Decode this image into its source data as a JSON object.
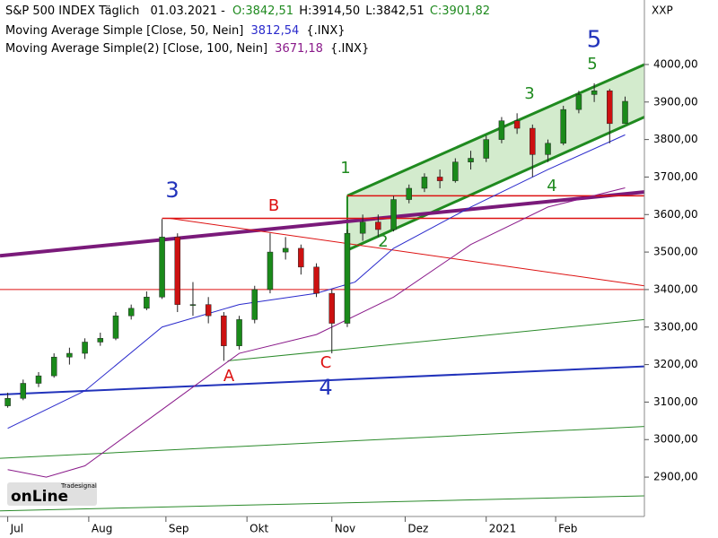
{
  "chart_data": {
    "type": "candlestick",
    "header": {
      "title": "S&P 500 INDEX Täglich",
      "date": "01.03.2021 -",
      "open": "O:3842,51",
      "high": "H:3914,50",
      "low": "L:3842,51",
      "close": "C:3901,82"
    },
    "ma_legend": [
      {
        "label": "Moving Average Simple [Close, 50, Nein]",
        "value": "3812,54",
        "suffix": "{.INX}",
        "color": "#2b2bcc"
      },
      {
        "label": "Moving Average Simple(2) [Close, 100, Nein]",
        "value": "3671,18",
        "suffix": "{.INX}",
        "color": "#8a1a8a"
      }
    ],
    "symbol": "XXP",
    "watermark": {
      "brand": "Tradesignal",
      "name": "onLine"
    },
    "up_color": "#1a8a1a",
    "down_color": "#cc1111",
    "xlim": [
      -2,
      165
    ],
    "ylim": [
      2795,
      4172
    ],
    "xticks": [
      {
        "value": 0,
        "label": "Jul"
      },
      {
        "value": 21,
        "label": "Aug"
      },
      {
        "value": 41,
        "label": "Sep"
      },
      {
        "value": 62,
        "label": "Okt"
      },
      {
        "value": 84,
        "label": "Nov"
      },
      {
        "value": 103,
        "label": "Dez"
      },
      {
        "value": 124,
        "label": "2021"
      },
      {
        "value": 142,
        "label": "Feb"
      }
    ],
    "yticks": [
      {
        "value": 2900,
        "label": "2900,00"
      },
      {
        "value": 3000,
        "label": "3000,00"
      },
      {
        "value": 3100,
        "label": "3100,00"
      },
      {
        "value": 3200,
        "label": "3200,00"
      },
      {
        "value": 3300,
        "label": "3300,00"
      },
      {
        "value": 3400,
        "label": "3400,00"
      },
      {
        "value": 3500,
        "label": "3500,00"
      },
      {
        "value": 3600,
        "label": "3600,00"
      },
      {
        "value": 3700,
        "label": "3700,00"
      },
      {
        "value": 3800,
        "label": "3800,00"
      },
      {
        "value": 3900,
        "label": "3900,00"
      },
      {
        "value": 4000,
        "label": "4000,00"
      }
    ],
    "x": [
      0,
      4,
      8,
      12,
      16,
      20,
      24,
      28,
      32,
      36,
      40,
      44,
      48,
      52,
      56,
      60,
      64,
      68,
      72,
      76,
      80,
      84,
      88,
      92,
      96,
      100,
      104,
      108,
      112,
      116,
      120,
      124,
      128,
      132,
      136,
      140,
      144,
      148,
      152,
      156,
      160
    ],
    "ohlc": [
      [
        3090,
        3125,
        3085,
        3110
      ],
      [
        3110,
        3160,
        3105,
        3150
      ],
      [
        3150,
        3180,
        3140,
        3170
      ],
      [
        3170,
        3230,
        3165,
        3220
      ],
      [
        3220,
        3245,
        3200,
        3230
      ],
      [
        3230,
        3270,
        3215,
        3260
      ],
      [
        3260,
        3285,
        3250,
        3270
      ],
      [
        3270,
        3340,
        3265,
        3330
      ],
      [
        3330,
        3360,
        3320,
        3350
      ],
      [
        3350,
        3395,
        3345,
        3380
      ],
      [
        3380,
        3588,
        3375,
        3540
      ],
      [
        3540,
        3550,
        3340,
        3360
      ],
      [
        3360,
        3420,
        3330,
        3360
      ],
      [
        3360,
        3380,
        3310,
        3330
      ],
      [
        3330,
        3340,
        3210,
        3250
      ],
      [
        3250,
        3330,
        3240,
        3320
      ],
      [
        3320,
        3410,
        3310,
        3400
      ],
      [
        3400,
        3550,
        3390,
        3500
      ],
      [
        3500,
        3540,
        3480,
        3510
      ],
      [
        3510,
        3520,
        3440,
        3460
      ],
      [
        3460,
        3470,
        3380,
        3390
      ],
      [
        3390,
        3400,
        3230,
        3310
      ],
      [
        3310,
        3560,
        3300,
        3550
      ],
      [
        3550,
        3600,
        3530,
        3580
      ],
      [
        3580,
        3600,
        3540,
        3560
      ],
      [
        3560,
        3650,
        3555,
        3640
      ],
      [
        3640,
        3680,
        3630,
        3670
      ],
      [
        3670,
        3710,
        3660,
        3700
      ],
      [
        3700,
        3720,
        3670,
        3690
      ],
      [
        3690,
        3750,
        3685,
        3740
      ],
      [
        3740,
        3770,
        3720,
        3750
      ],
      [
        3750,
        3810,
        3740,
        3800
      ],
      [
        3800,
        3860,
        3790,
        3850
      ],
      [
        3850,
        3870,
        3815,
        3830
      ],
      [
        3830,
        3840,
        3700,
        3760
      ],
      [
        3760,
        3800,
        3740,
        3790
      ],
      [
        3790,
        3890,
        3785,
        3880
      ],
      [
        3880,
        3930,
        3870,
        3920
      ],
      [
        3920,
        3950,
        3900,
        3930
      ],
      [
        3930,
        3935,
        3790,
        3842.51
      ],
      [
        3842.51,
        3914.5,
        3842.51,
        3901.82
      ]
    ],
    "series": [
      {
        "name": "MA50",
        "color": "#2b2bcc",
        "x": [
          0,
          20,
          40,
          60,
          80,
          90,
          100,
          120,
          140,
          160
        ],
        "values": [
          3030,
          3130,
          3300,
          3360,
          3390,
          3420,
          3510,
          3620,
          3720,
          3812.54
        ]
      },
      {
        "name": "MA100",
        "color": "#8a1a8a",
        "x": [
          0,
          10,
          20,
          40,
          60,
          80,
          100,
          120,
          140,
          160
        ],
        "values": [
          2920,
          2900,
          2930,
          3080,
          3230,
          3280,
          3380,
          3520,
          3620,
          3671.18
        ]
      }
    ],
    "channel": {
      "color": "#1f8a1f",
      "fill": "#c8e6c0",
      "x": [
        88,
        165
      ],
      "upper": [
        3650,
        4000
      ],
      "lower": [
        3505,
        3860
      ]
    },
    "lines": [
      {
        "color": "#7a1a7a",
        "width": 4,
        "x": [
          -2,
          165
        ],
        "values": [
          3490,
          3660
        ]
      },
      {
        "color": "#2233bb",
        "width": 2,
        "x": [
          -2,
          165
        ],
        "values": [
          3120,
          3195
        ]
      },
      {
        "color": "#dd1111",
        "width": 1.5,
        "x": [
          40,
          165
        ],
        "values": [
          3590,
          3590
        ]
      },
      {
        "color": "#dd1111",
        "width": 1,
        "x": [
          -2,
          165
        ],
        "values": [
          3400,
          3400
        ]
      },
      {
        "color": "#dd1111",
        "width": 1.5,
        "x": [
          88,
          165
        ],
        "values": [
          3650,
          3650
        ]
      },
      {
        "color": "#dd1111",
        "width": 1,
        "x": [
          42,
          165
        ],
        "values": [
          3590,
          3410
        ]
      },
      {
        "color": "#2a8a2a",
        "width": 1,
        "x": [
          57,
          165
        ],
        "values": [
          3210,
          3320
        ]
      },
      {
        "color": "#2a8a2a",
        "width": 1,
        "x": [
          -2,
          165
        ],
        "values": [
          2950,
          3035
        ]
      },
      {
        "color": "#2a8a2a",
        "width": 1,
        "x": [
          -2,
          165
        ],
        "values": [
          2810,
          2850
        ]
      }
    ],
    "annotations": [
      {
        "label": "5",
        "color": "#2233bb"
      },
      {
        "label": "5",
        "color": "#1f8a1f"
      },
      {
        "label": "3",
        "color": "#1f8a1f"
      },
      {
        "label": "1",
        "color": "#1f8a1f"
      },
      {
        "label": "2",
        "color": "#1f8a1f"
      },
      {
        "label": "4",
        "color": "#1f8a1f"
      },
      {
        "label": "3",
        "color": "#2233bb"
      },
      {
        "label": "B",
        "color": "#dd1111"
      },
      {
        "label": "A",
        "color": "#dd1111"
      },
      {
        "label": "C",
        "color": "#dd1111"
      },
      {
        "label": "4",
        "color": "#2233bb"
      }
    ]
  }
}
